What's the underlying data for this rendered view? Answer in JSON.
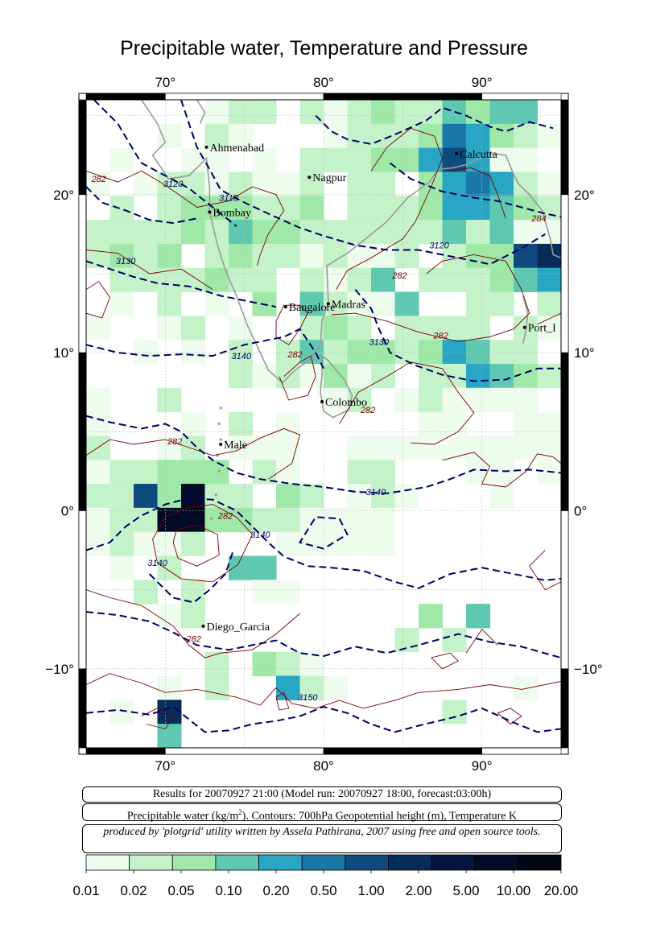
{
  "title": "Precipitable water, Temperature and Pressure",
  "map": {
    "lon_range": [
      65,
      95
    ],
    "lat_range": [
      -15,
      26
    ],
    "lon_ticks": [
      {
        "v": 70,
        "label": "70°"
      },
      {
        "v": 80,
        "label": "80°"
      },
      {
        "v": 90,
        "label": "90°"
      }
    ],
    "lat_ticks": [
      {
        "v": 20,
        "label": "20°"
      },
      {
        "v": 10,
        "label": "10°"
      },
      {
        "v": 0,
        "label": "0°"
      },
      {
        "v": -10,
        "label": "−10°"
      }
    ],
    "cities": [
      {
        "name": "Ahmenabad",
        "lon": 72.6,
        "lat": 23.0
      },
      {
        "name": "Nagpur",
        "lon": 79.1,
        "lat": 21.1
      },
      {
        "name": "Calcutta",
        "lon": 88.4,
        "lat": 22.6
      },
      {
        "name": "Bombay",
        "lon": 72.8,
        "lat": 18.9
      },
      {
        "name": "Bangalore",
        "lon": 77.6,
        "lat": 12.9
      },
      {
        "name": "Madras",
        "lon": 80.3,
        "lat": 13.1
      },
      {
        "name": "Port_I",
        "lon": 92.7,
        "lat": 11.6
      },
      {
        "name": "Colombo",
        "lon": 79.9,
        "lat": 6.9
      },
      {
        "name": "Male",
        "lon": 73.5,
        "lat": 4.2
      },
      {
        "name": "Diego_Garcia",
        "lon": 72.4,
        "lat": -7.3
      }
    ],
    "contour_labels": [
      {
        "text": "3120",
        "lon": 70.5,
        "lat": 20.5,
        "color": "#000066"
      },
      {
        "text": "3110",
        "lon": 74.0,
        "lat": 19.6,
        "color": "#000066"
      },
      {
        "text": "3130",
        "lon": 67.5,
        "lat": 15.6,
        "color": "#000066"
      },
      {
        "text": "3120",
        "lon": 87.3,
        "lat": 16.6,
        "color": "#000066"
      },
      {
        "text": "3130",
        "lon": 83.5,
        "lat": 10.5,
        "color": "#000066"
      },
      {
        "text": "3140",
        "lon": 74.8,
        "lat": 9.6,
        "color": "#000066"
      },
      {
        "text": "3140",
        "lon": 83.3,
        "lat": 1.0,
        "color": "#000066"
      },
      {
        "text": "3140",
        "lon": 76.0,
        "lat": -1.7,
        "color": "#000066"
      },
      {
        "text": "3140",
        "lon": 69.5,
        "lat": -3.5,
        "color": "#000066"
      },
      {
        "text": "3150",
        "lon": 79.0,
        "lat": -12.0,
        "color": "#000066"
      },
      {
        "text": "282",
        "lon": 65.8,
        "lat": 20.8,
        "color": "#7a0000"
      },
      {
        "text": "284",
        "lon": 93.6,
        "lat": 18.3,
        "color": "#7a0000"
      },
      {
        "text": "282",
        "lon": 84.8,
        "lat": 14.7,
        "color": "#7a0000"
      },
      {
        "text": "282",
        "lon": 87.4,
        "lat": 10.9,
        "color": "#7a0000"
      },
      {
        "text": "282",
        "lon": 78.2,
        "lat": 9.7,
        "color": "#7a0000"
      },
      {
        "text": "282",
        "lon": 82.8,
        "lat": 6.2,
        "color": "#7a0000"
      },
      {
        "text": "282",
        "lon": 70.6,
        "lat": 4.2,
        "color": "#7a0000"
      },
      {
        "text": "282",
        "lon": 73.8,
        "lat": -0.5,
        "color": "#7a0000"
      },
      {
        "text": "282",
        "lon": 71.8,
        "lat": -8.3,
        "color": "#7a0000"
      }
    ]
  },
  "info": {
    "line1": "Results for 20070927 21:00 (Model run: 20070927 18:00, forecast:03:00h)",
    "line2_a": "Precipitable water (kg/m",
    "line2_sup": "2",
    "line2_b": ").  Contours: 700hPa Geopotential height (m), Temperature K",
    "line3": "produced by 'plotgrid' utility written by Assela Pathirana, 2007 using free and open source tools."
  },
  "colorbar": {
    "colors": [
      "#eefcee",
      "#c4f2c9",
      "#9fe8a8",
      "#5fc8b0",
      "#28a6c4",
      "#1a78a8",
      "#0f4a7e",
      "#082c5a",
      "#041640",
      "#020a26",
      "#000410"
    ],
    "labels": [
      "0.01",
      "0.02",
      "0.05",
      "0.10",
      "0.20",
      "0.50",
      "1.00",
      "2.00",
      "5.00",
      "10.00",
      "20.00"
    ]
  },
  "legend_colors": {
    "geopotential_contour": "#000066",
    "temperature_contour": "#7a0000",
    "coastline": "#9a9a9a"
  }
}
